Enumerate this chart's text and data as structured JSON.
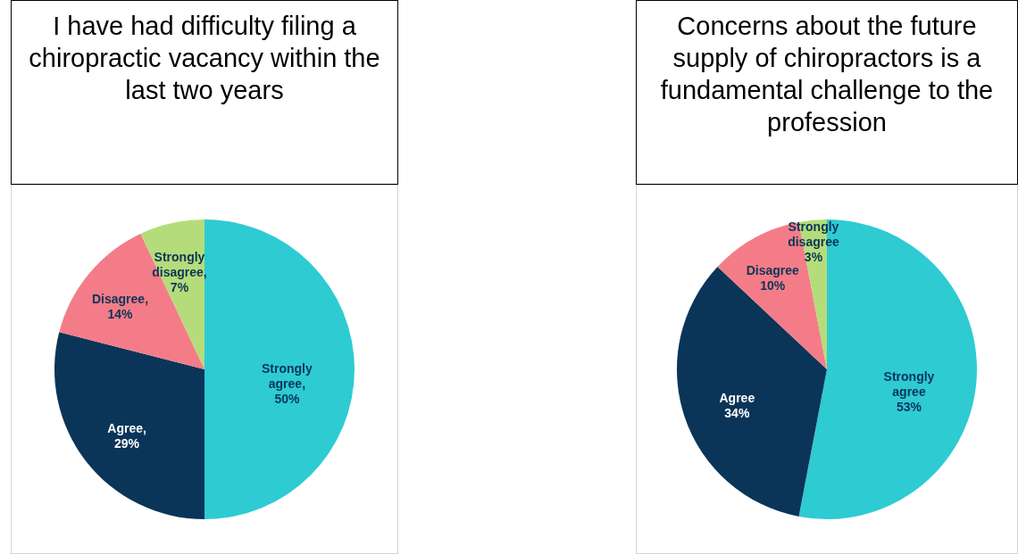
{
  "chart_data": [
    {
      "type": "pie",
      "title": "I have had difficulty filing a chiropractic vacancy within the last two years",
      "categories": [
        "Strongly agree",
        "Agree",
        "Disagree",
        "Strongly disagree"
      ],
      "values": [
        50,
        29,
        14,
        7
      ],
      "colors": [
        "#2ecbd3",
        "#0a3558",
        "#f47c88",
        "#b5dc7a"
      ],
      "value_labels": [
        ", 50%",
        ", 29%",
        ", 14%",
        ", 7%"
      ]
    },
    {
      "type": "pie",
      "title": "Concerns about the future supply of chiropractors is a fundamental challenge to the profession",
      "categories": [
        "Strongly agree",
        "Agree",
        "Disagree",
        "Strongly disagree"
      ],
      "values": [
        53,
        34,
        10,
        3
      ],
      "colors": [
        "#2ecbd3",
        "#0a3558",
        "#f47c88",
        "#b5dc7a"
      ],
      "value_labels": [
        "53%",
        "34%",
        "10%",
        "3%"
      ]
    }
  ]
}
